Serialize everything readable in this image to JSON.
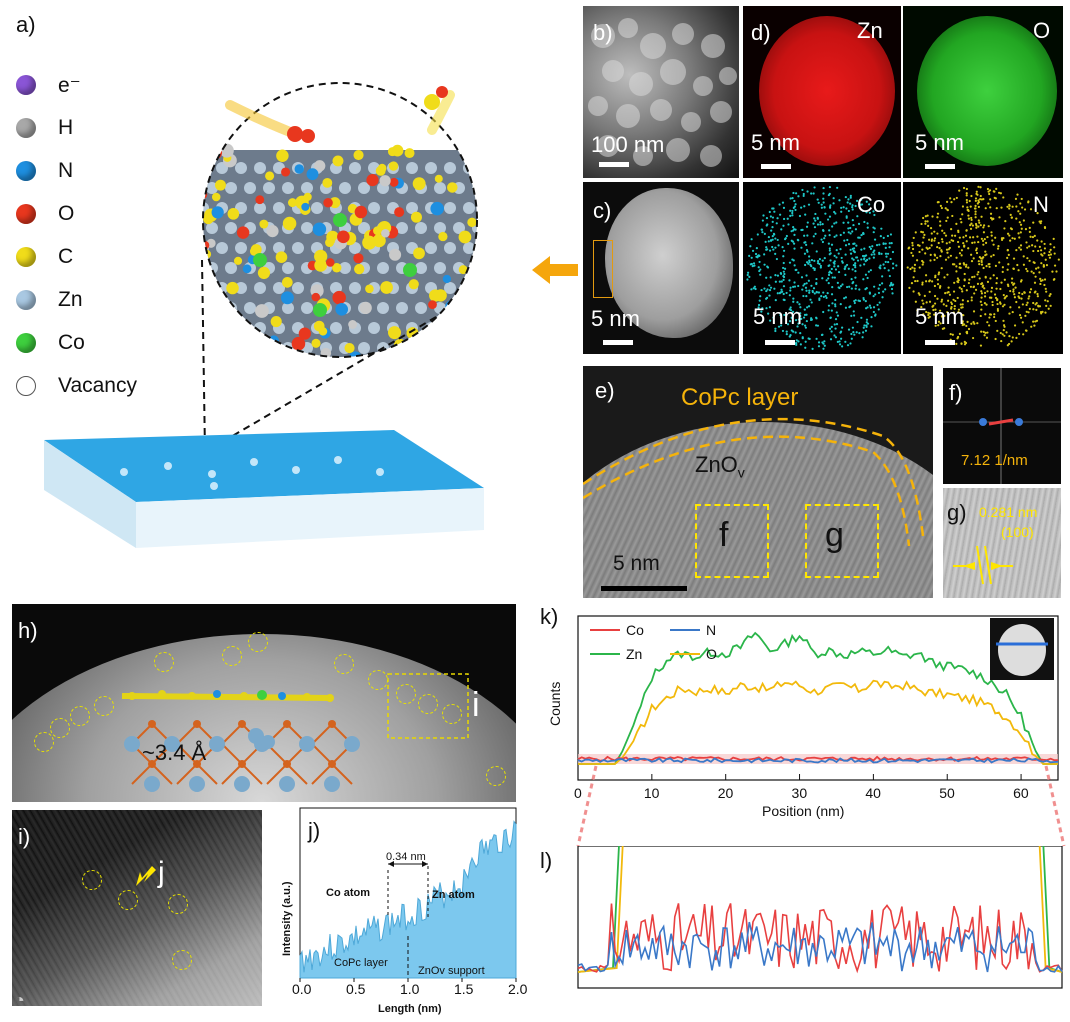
{
  "panel_labels": {
    "a": "a)",
    "b": "b)",
    "c": "c)",
    "d": "d)",
    "e": "e)",
    "f": "f)",
    "g": "g)",
    "h": "h)",
    "i": "i)",
    "j": "j)",
    "k": "k)",
    "l": "l)"
  },
  "legend": [
    {
      "label": "e⁻",
      "color": "#8a55d6"
    },
    {
      "label": "H",
      "color": "#a8a8a8"
    },
    {
      "label": "N",
      "color": "#1e8fe0"
    },
    {
      "label": "O",
      "color": "#e8371e"
    },
    {
      "label": "C",
      "color": "#f0dc1a"
    },
    {
      "label": "Zn",
      "color": "#a9c8e2"
    },
    {
      "label": "Co",
      "color": "#3ecf3e"
    },
    {
      "label": "Vacancy",
      "color": "#ffffff"
    }
  ],
  "eds": {
    "b_scale": "100 nm",
    "c_scale": "5 nm",
    "zn": {
      "label": "Zn",
      "scale": "5 nm",
      "color": "#d81010"
    },
    "o": {
      "label": "O",
      "scale": "5 nm",
      "color": "#20b020"
    },
    "co": {
      "label": "Co",
      "scale": "5 nm",
      "color": "#1ec8c8"
    },
    "n": {
      "label": "N",
      "scale": "5 nm",
      "color": "#d8c81a"
    }
  },
  "panel_e": {
    "layer_label": "CoPc layer",
    "support_label": "ZnO",
    "support_sub": "v",
    "box_f": "f",
    "box_g": "g",
    "scale": "5 nm"
  },
  "panel_f": {
    "value": "7.12 1/nm"
  },
  "panel_g": {
    "value": "0.281 nm",
    "plane": "(100)"
  },
  "panel_h": {
    "distance": "~3.4 Å",
    "box_i": "i"
  },
  "panel_i": {
    "arrow_label": "j"
  },
  "panel_j": {
    "ylabel": "Intensity (a.u.)",
    "xlabel": "Length (nm)",
    "spacing": "0.34 nm",
    "co_atom": "Co atom",
    "zn_atom": "Zn atom",
    "left_region": "CoPc layer",
    "right_region": "ZnOv support",
    "xticks": [
      "0.0",
      "0.5",
      "1.0",
      "1.5",
      "2.0"
    ]
  },
  "chart_data": [
    {
      "type": "line",
      "title": "",
      "xlabel": "Position (nm)",
      "ylabel": "Counts",
      "xlim": [
        0,
        65
      ],
      "xticks": [
        "0",
        "10",
        "20",
        "30",
        "40",
        "50",
        "60"
      ],
      "legend": [
        "Co",
        "N",
        "Zn",
        "O"
      ],
      "series": [
        {
          "name": "Zn",
          "color": "#2bb54a",
          "x": [
            0,
            5,
            6,
            8,
            10,
            12,
            14,
            16,
            18,
            20,
            22,
            24,
            26,
            28,
            30,
            32,
            34,
            36,
            38,
            40,
            42,
            44,
            46,
            48,
            50,
            52,
            54,
            56,
            58,
            60,
            62,
            63,
            65
          ],
          "values": [
            0,
            0,
            8,
            30,
            55,
            66,
            70,
            68,
            71,
            70,
            74,
            83,
            72,
            76,
            82,
            70,
            72,
            69,
            71,
            70,
            72,
            68,
            70,
            64,
            62,
            60,
            57,
            52,
            44,
            30,
            8,
            0,
            0
          ]
        },
        {
          "name": "O",
          "color": "#f2b90c",
          "x": [
            0,
            5,
            6,
            8,
            10,
            12,
            14,
            16,
            18,
            20,
            22,
            24,
            26,
            28,
            30,
            32,
            34,
            36,
            38,
            40,
            42,
            44,
            46,
            48,
            50,
            52,
            54,
            56,
            58,
            60,
            62,
            63,
            65
          ],
          "values": [
            0,
            0,
            4,
            18,
            35,
            42,
            48,
            46,
            48,
            45,
            50,
            49,
            47,
            52,
            50,
            46,
            48,
            50,
            47,
            52,
            49,
            50,
            47,
            45,
            44,
            42,
            40,
            36,
            30,
            20,
            5,
            0,
            0
          ]
        },
        {
          "name": "Co",
          "color": "#e84040",
          "x": [
            0,
            10,
            20,
            30,
            40,
            50,
            60,
            65
          ],
          "values": [
            2,
            3,
            2,
            3,
            2,
            3,
            2,
            2
          ]
        },
        {
          "name": "N",
          "color": "#3a78c8",
          "x": [
            0,
            10,
            20,
            30,
            40,
            50,
            60,
            65
          ],
          "values": [
            1,
            2,
            1,
            2,
            1,
            2,
            1,
            1
          ]
        }
      ]
    }
  ]
}
